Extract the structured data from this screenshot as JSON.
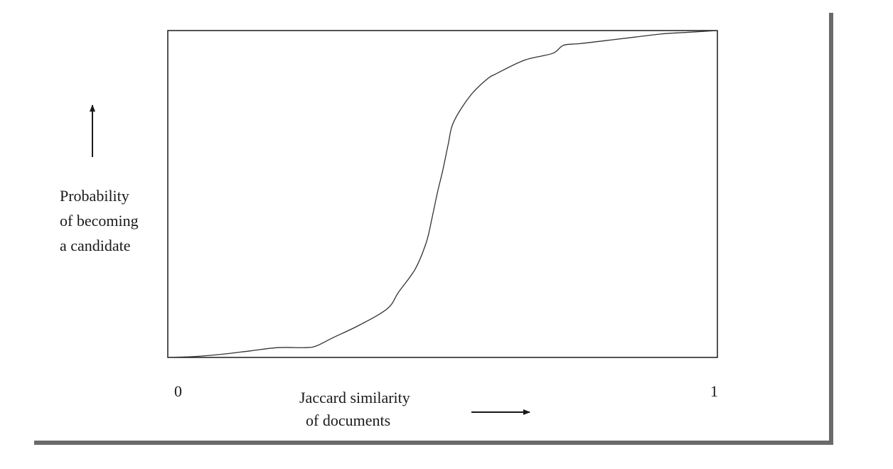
{
  "chart_data": {
    "type": "line",
    "ylabel_lines": [
      "Probability",
      "of becoming",
      "a candidate"
    ],
    "xlabel_lines": [
      "Jaccard similarity",
      "of documents"
    ],
    "x_ticks": [
      "0",
      "1"
    ],
    "xlim": [
      0,
      1
    ],
    "ylim": [
      0,
      1
    ],
    "grid": false,
    "series": [
      {
        "x": [
          0.0,
          0.05,
          0.1,
          0.15,
          0.2,
          0.25,
          0.27,
          0.3,
          0.35,
          0.4,
          0.42,
          0.45,
          0.47,
          0.48,
          0.49,
          0.5,
          0.51,
          0.52,
          0.55,
          0.58,
          0.6,
          0.65,
          0.7,
          0.72,
          0.75,
          0.8,
          0.85,
          0.9,
          0.95,
          1.0
        ],
        "y": [
          0.0,
          0.003,
          0.01,
          0.02,
          0.03,
          0.03,
          0.035,
          0.06,
          0.1,
          0.15,
          0.2,
          0.27,
          0.35,
          0.42,
          0.5,
          0.57,
          0.65,
          0.72,
          0.8,
          0.85,
          0.87,
          0.91,
          0.93,
          0.955,
          0.96,
          0.97,
          0.98,
          0.99,
          0.995,
          1.0
        ]
      }
    ]
  }
}
